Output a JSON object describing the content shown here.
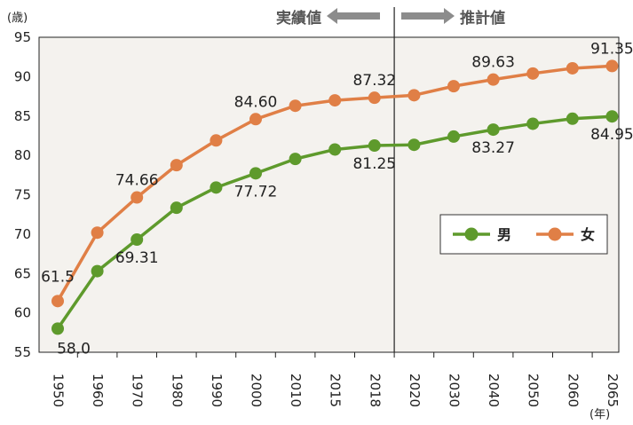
{
  "chart_data": {
    "type": "line",
    "y_unit": "(歳)",
    "x_unit": "(年)",
    "ylim": [
      55,
      95
    ],
    "y_ticks": [
      55,
      60,
      65,
      70,
      75,
      80,
      85,
      90,
      95
    ],
    "categories": [
      "1950",
      "1960",
      "1970",
      "1980",
      "1990",
      "2000",
      "2010",
      "2015",
      "2018",
      "2020",
      "2030",
      "2040",
      "2050",
      "2060",
      "2065"
    ],
    "actual_label": "実績値",
    "projection_label": "推計値",
    "divider_after_index": 8,
    "series": [
      {
        "name": "男",
        "color": "#5e9a2c",
        "values": [
          58.0,
          65.3,
          69.31,
          73.35,
          75.92,
          77.72,
          79.55,
          80.75,
          81.25,
          81.34,
          82.39,
          83.27,
          84.02,
          84.66,
          84.95
        ],
        "labels": [
          {
            "index": 0,
            "text": "58.0"
          },
          {
            "index": 2,
            "text": "69.31"
          },
          {
            "index": 5,
            "text": "77.72"
          },
          {
            "index": 8,
            "text": "81.25"
          },
          {
            "index": 11,
            "text": "83.27"
          },
          {
            "index": 14,
            "text": "84.95"
          }
        ]
      },
      {
        "name": "女",
        "color": "#e07f46",
        "values": [
          61.5,
          70.19,
          74.66,
          78.76,
          81.9,
          84.6,
          86.3,
          86.99,
          87.32,
          87.64,
          88.79,
          89.63,
          90.4,
          91.06,
          91.35
        ],
        "labels": [
          {
            "index": 0,
            "text": "61.5"
          },
          {
            "index": 2,
            "text": "74.66"
          },
          {
            "index": 5,
            "text": "84.60"
          },
          {
            "index": 8,
            "text": "87.32"
          },
          {
            "index": 11,
            "text": "89.63"
          },
          {
            "index": 14,
            "text": "91.35"
          }
        ]
      }
    ],
    "grid": false,
    "legend_position": "right-middle",
    "header_arrow_color": "#8c8c8c",
    "plot_background": "#f4f2ee"
  }
}
